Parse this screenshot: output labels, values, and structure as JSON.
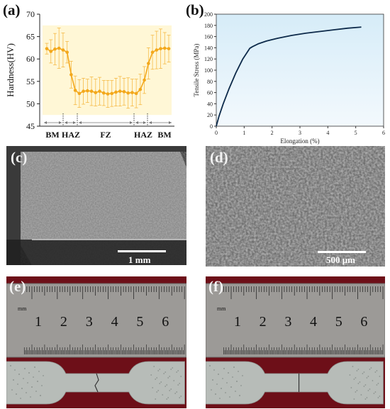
{
  "panels": {
    "a": "(a)",
    "b": "(b)",
    "c": "(c)",
    "d": "(d)",
    "e": "(e)",
    "f": "(f)"
  },
  "chart_data": [
    {
      "id": "a",
      "type": "line",
      "ylabel": "Hardness(HV)",
      "xlabel": "",
      "ylim": [
        45,
        70
      ],
      "yticks": [
        45,
        50,
        55,
        60,
        65,
        70
      ],
      "zones": [
        "BM",
        "HAZ",
        "FZ",
        "HAZ",
        "BM"
      ],
      "series": [
        {
          "y": [
            62.3,
            61.7,
            62.2,
            62.4,
            62.0,
            61.5,
            56.5,
            53.0,
            52.3,
            52.8,
            52.9,
            52.8,
            52.5,
            52.8,
            52.4,
            52.2,
            52.3,
            52.6,
            52.8,
            52.7,
            52.4,
            52.5,
            52.3,
            53.2,
            55.3,
            59.0,
            61.5,
            62.0,
            62.3,
            62.4,
            62.3
          ],
          "err": [
            1.2,
            2.6,
            3.5,
            4.5,
            3.8,
            2.4,
            3.0,
            3.2,
            3.1,
            2.9,
            2.6,
            3.2,
            3.0,
            3.1,
            2.8,
            3.0,
            2.9,
            3.1,
            3.3,
            3.0,
            3.4,
            3.0,
            3.2,
            3.4,
            3.0,
            3.5,
            3.8,
            4.2,
            4.4,
            3.5,
            3.0
          ]
        }
      ],
      "colors": {
        "line": "#f3a81c",
        "band": "#fff7d6"
      }
    },
    {
      "id": "b",
      "type": "line",
      "xlabel": "Elongation (%)",
      "ylabel": "Tensile Stress (MPa)",
      "xlim": [
        0,
        6
      ],
      "ylim": [
        0,
        200
      ],
      "xticks": [
        0,
        1,
        2,
        3,
        4,
        5,
        6
      ],
      "yticks": [
        0,
        20,
        40,
        60,
        80,
        100,
        120,
        140,
        160,
        180,
        200
      ],
      "series": [
        {
          "x": [
            0,
            0.1,
            0.25,
            0.45,
            0.7,
            0.95,
            1.2,
            1.3,
            1.5,
            1.8,
            2.2,
            2.7,
            3.2,
            3.7,
            4.2,
            4.7,
            5.2
          ],
          "y": [
            0,
            18,
            40,
            66,
            95,
            120,
            139,
            142,
            147,
            152,
            157,
            162,
            166,
            169,
            172,
            175,
            177
          ]
        }
      ],
      "colors": {
        "line": "#0d2a4a",
        "bg_top": "#d6ecf8",
        "bg_bottom": "#f3f9fd"
      }
    }
  ],
  "micrographs": {
    "c_scale": "1 mm",
    "d_scale": "500 μm"
  },
  "ruler": {
    "unit": "mm",
    "numbers": [
      "1",
      "2",
      "3",
      "4",
      "5",
      "6"
    ]
  }
}
